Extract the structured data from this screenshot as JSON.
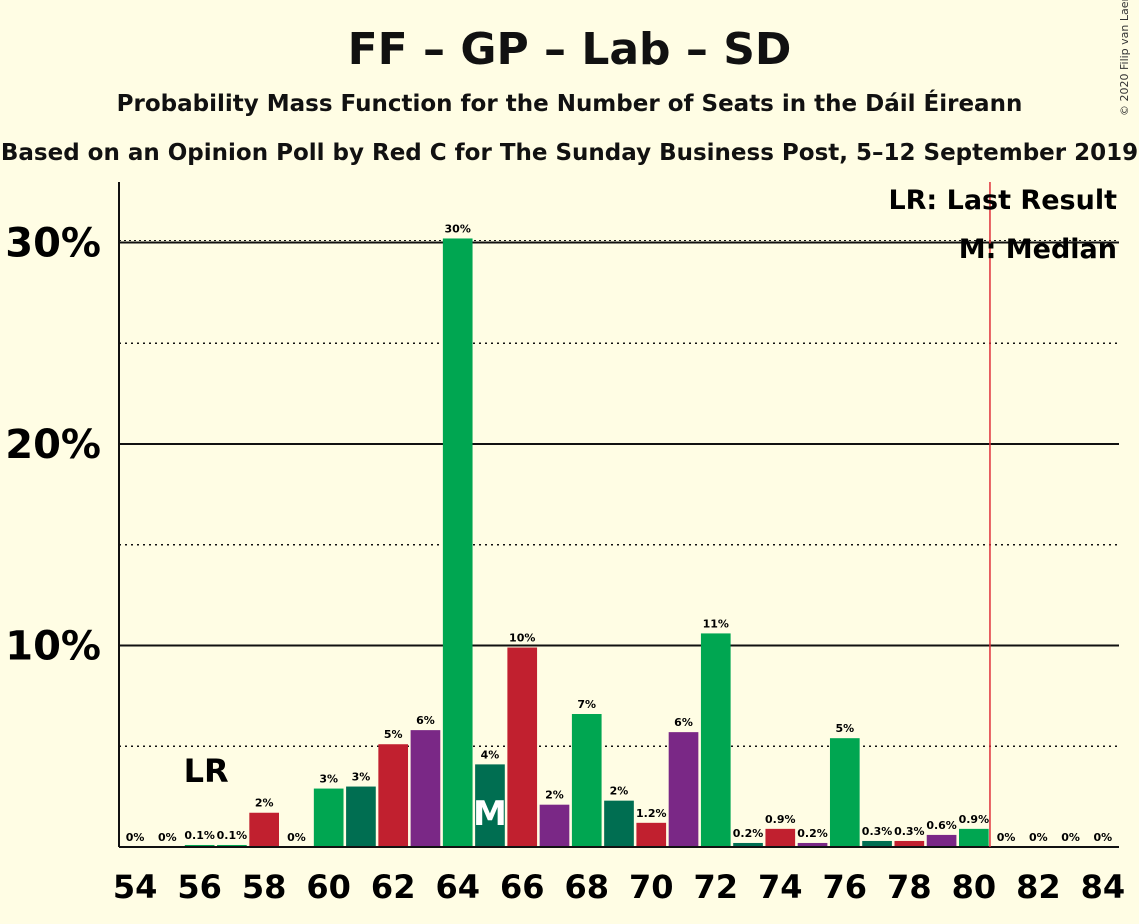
{
  "chart_data": {
    "type": "bar",
    "title": "FF – GP – Lab – SD",
    "subtitle": "Probability Mass Function for the Number of Seats in the Dáil Éireann",
    "source_line": "Based on an Opinion Poll by Red C for The Sunday Business Post, 5–12 September 2019",
    "copyright": "© 2020 Filip van Laenen",
    "x": [
      54,
      55,
      56,
      57,
      58,
      59,
      60,
      61,
      62,
      63,
      64,
      65,
      66,
      67,
      68,
      69,
      70,
      71,
      72,
      73,
      74,
      75,
      76,
      77,
      78,
      79,
      80,
      81,
      82,
      83,
      84
    ],
    "values": [
      0,
      0,
      0.1,
      0.1,
      1.7,
      0,
      2.9,
      3.0,
      5.1,
      5.8,
      30.2,
      4.1,
      9.9,
      2.1,
      6.6,
      2.3,
      1.2,
      5.7,
      10.6,
      0.2,
      0.9,
      0.2,
      5.4,
      0.3,
      0.3,
      0.6,
      0.9,
      0,
      0,
      0,
      0
    ],
    "value_labels": [
      "0%",
      "0%",
      "0.1%",
      "0.1%",
      "2%",
      "0%",
      "3%",
      "3%",
      "5%",
      "6%",
      "30%",
      "4%",
      "10%",
      "2%",
      "7%",
      "2%",
      "1.2%",
      "6%",
      "11%",
      "0.2%",
      "0.9%",
      "0.2%",
      "5%",
      "0.3%",
      "0.3%",
      "0.6%",
      "0.9%",
      "0%",
      "0%",
      "0%",
      "0%"
    ],
    "bar_colors": [
      "#00A651",
      "#00A651",
      "#00A651",
      "#00A651",
      "#C1202F",
      "#00A651",
      "#00A651",
      "#006E51",
      "#C1202F",
      "#7A2886",
      "#00A651",
      "#006E51",
      "#C1202F",
      "#7A2886",
      "#00A651",
      "#006E51",
      "#C1202F",
      "#7A2886",
      "#00A651",
      "#006E51",
      "#C1202F",
      "#7A2886",
      "#00A651",
      "#006E51",
      "#C1202F",
      "#7A2886",
      "#00A651",
      "#00A651",
      "#00A651",
      "#00A651",
      "#00A651"
    ],
    "xtick_labels": [
      "54",
      "56",
      "58",
      "60",
      "62",
      "64",
      "66",
      "68",
      "70",
      "72",
      "74",
      "76",
      "78",
      "80",
      "82",
      "84"
    ],
    "ytick_labels": [
      "10%",
      "20%",
      "30%"
    ],
    "ylim": [
      0,
      33
    ],
    "grid": true,
    "last_result_seats": 80.5,
    "last_result_label": "LR",
    "median_seats": 65,
    "median_label": "M",
    "lr_color": "#E0303A",
    "legend": {
      "placement": "top-right",
      "items": [
        "LR: Last Result",
        "M: Median"
      ]
    }
  }
}
